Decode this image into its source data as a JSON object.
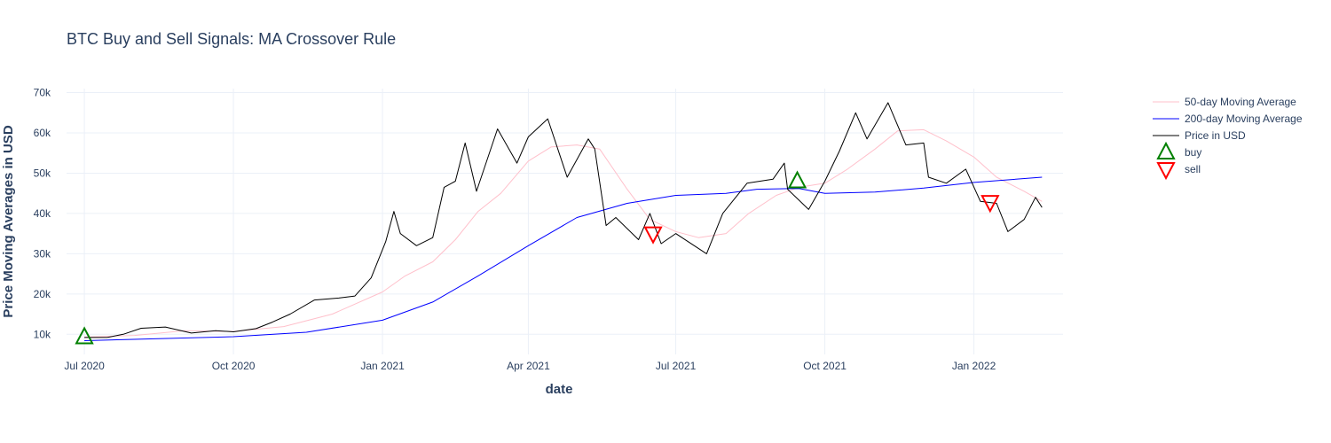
{
  "chart_data": {
    "type": "line",
    "title": "BTC Buy and Sell Signals: MA Crossover Rule",
    "xlabel": "date",
    "ylabel": "Price Moving Averages in USD",
    "xlim": [
      "2020-06-20",
      "2022-02-25"
    ],
    "ylim": [
      5000,
      71000
    ],
    "x_ticks": [
      {
        "date": "2020-07-01",
        "label": "Jul 2020"
      },
      {
        "date": "2020-10-01",
        "label": "Oct 2020"
      },
      {
        "date": "2021-01-01",
        "label": "Jan 2021"
      },
      {
        "date": "2021-04-01",
        "label": "Apr 2021"
      },
      {
        "date": "2021-07-01",
        "label": "Jul 2021"
      },
      {
        "date": "2021-10-01",
        "label": "Oct 2021"
      },
      {
        "date": "2022-01-01",
        "label": "Jan 2022"
      }
    ],
    "y_ticks": [
      {
        "value": 10000,
        "label": "10k"
      },
      {
        "value": 20000,
        "label": "20k"
      },
      {
        "value": 30000,
        "label": "30k"
      },
      {
        "value": 40000,
        "label": "40k"
      },
      {
        "value": 50000,
        "label": "50k"
      },
      {
        "value": 60000,
        "label": "60k"
      },
      {
        "value": 70000,
        "label": "70k"
      }
    ],
    "grid": true,
    "legend_position": "top-right outside",
    "series": [
      {
        "name": "50-day Moving Average",
        "color": "#ffc0cb",
        "points": [
          [
            "2020-07-01",
            9300
          ],
          [
            "2020-08-01",
            9700
          ],
          [
            "2020-09-01",
            10900
          ],
          [
            "2020-10-01",
            10700
          ],
          [
            "2020-11-01",
            11900
          ],
          [
            "2020-12-01",
            15000
          ],
          [
            "2021-01-01",
            20500
          ],
          [
            "2021-01-15",
            24500
          ],
          [
            "2021-02-01",
            28000
          ],
          [
            "2021-02-15",
            33500
          ],
          [
            "2021-03-01",
            40500
          ],
          [
            "2021-03-15",
            45000
          ],
          [
            "2021-04-01",
            53000
          ],
          [
            "2021-04-15",
            56500
          ],
          [
            "2021-05-01",
            57000
          ],
          [
            "2021-05-15",
            56000
          ],
          [
            "2021-06-01",
            46000
          ],
          [
            "2021-06-15",
            38500
          ],
          [
            "2021-07-01",
            35500
          ],
          [
            "2021-07-15",
            34000
          ],
          [
            "2021-08-01",
            35000
          ],
          [
            "2021-08-15",
            40000
          ],
          [
            "2021-09-01",
            44500
          ],
          [
            "2021-09-15",
            46500
          ],
          [
            "2021-10-01",
            47500
          ],
          [
            "2021-10-15",
            51000
          ],
          [
            "2021-11-01",
            56000
          ],
          [
            "2021-11-15",
            60500
          ],
          [
            "2021-12-01",
            60800
          ],
          [
            "2021-12-15",
            58000
          ],
          [
            "2022-01-01",
            54000
          ],
          [
            "2022-01-15",
            49000
          ],
          [
            "2022-02-01",
            45500
          ],
          [
            "2022-02-12",
            43000
          ]
        ]
      },
      {
        "name": "200-day Moving Average",
        "color": "#0000ff",
        "points": [
          [
            "2020-07-01",
            8400
          ],
          [
            "2020-10-01",
            9400
          ],
          [
            "2020-11-15",
            10500
          ],
          [
            "2021-01-01",
            13500
          ],
          [
            "2021-02-01",
            18000
          ],
          [
            "2021-03-01",
            24500
          ],
          [
            "2021-04-01",
            32000
          ],
          [
            "2021-05-01",
            39000
          ],
          [
            "2021-06-01",
            42500
          ],
          [
            "2021-07-01",
            44500
          ],
          [
            "2021-08-01",
            45000
          ],
          [
            "2021-08-20",
            46000
          ],
          [
            "2021-09-15",
            46200
          ],
          [
            "2021-10-01",
            45000
          ],
          [
            "2021-11-01",
            45300
          ],
          [
            "2021-12-01",
            46300
          ],
          [
            "2022-01-01",
            47700
          ],
          [
            "2022-02-12",
            49000
          ]
        ]
      },
      {
        "name": "Price in USD",
        "color": "#000000",
        "points": [
          [
            "2020-07-01",
            9200
          ],
          [
            "2020-07-15",
            9200
          ],
          [
            "2020-07-25",
            10000
          ],
          [
            "2020-08-05",
            11500
          ],
          [
            "2020-08-20",
            11800
          ],
          [
            "2020-09-05",
            10300
          ],
          [
            "2020-09-20",
            10900
          ],
          [
            "2020-10-01",
            10600
          ],
          [
            "2020-10-15",
            11400
          ],
          [
            "2020-10-25",
            13000
          ],
          [
            "2020-11-05",
            15000
          ],
          [
            "2020-11-20",
            18500
          ],
          [
            "2020-12-05",
            19000
          ],
          [
            "2020-12-15",
            19500
          ],
          [
            "2020-12-25",
            24000
          ],
          [
            "2021-01-03",
            33000
          ],
          [
            "2021-01-08",
            40500
          ],
          [
            "2021-01-12",
            35000
          ],
          [
            "2021-01-22",
            32000
          ],
          [
            "2021-02-01",
            34000
          ],
          [
            "2021-02-08",
            46500
          ],
          [
            "2021-02-15",
            48000
          ],
          [
            "2021-02-21",
            57500
          ],
          [
            "2021-02-28",
            45500
          ],
          [
            "2021-03-13",
            61000
          ],
          [
            "2021-03-25",
            52500
          ],
          [
            "2021-04-01",
            59000
          ],
          [
            "2021-04-13",
            63500
          ],
          [
            "2021-04-25",
            49000
          ],
          [
            "2021-05-08",
            58500
          ],
          [
            "2021-05-12",
            56000
          ],
          [
            "2021-05-19",
            37000
          ],
          [
            "2021-05-25",
            39000
          ],
          [
            "2021-06-08",
            33500
          ],
          [
            "2021-06-15",
            40000
          ],
          [
            "2021-06-22",
            32500
          ],
          [
            "2021-07-01",
            35000
          ],
          [
            "2021-07-20",
            30000
          ],
          [
            "2021-07-30",
            40000
          ],
          [
            "2021-08-14",
            47500
          ],
          [
            "2021-08-30",
            48500
          ],
          [
            "2021-09-06",
            52500
          ],
          [
            "2021-09-08",
            46000
          ],
          [
            "2021-09-21",
            41000
          ],
          [
            "2021-10-01",
            48000
          ],
          [
            "2021-10-10",
            55500
          ],
          [
            "2021-10-20",
            65000
          ],
          [
            "2021-10-27",
            58500
          ],
          [
            "2021-11-09",
            67500
          ],
          [
            "2021-11-20",
            57000
          ],
          [
            "2021-12-01",
            57500
          ],
          [
            "2021-12-04",
            49000
          ],
          [
            "2021-12-15",
            47500
          ],
          [
            "2021-12-27",
            51000
          ],
          [
            "2022-01-05",
            43000
          ],
          [
            "2022-01-15",
            42500
          ],
          [
            "2022-01-22",
            35500
          ],
          [
            "2022-02-01",
            38500
          ],
          [
            "2022-02-08",
            44000
          ],
          [
            "2022-02-12",
            41500
          ]
        ]
      },
      {
        "name": "buy",
        "color": "#008000",
        "marker": "triangle-up",
        "points": [
          [
            "2020-07-01",
            9300
          ],
          [
            "2021-09-14",
            48000
          ]
        ]
      },
      {
        "name": "sell",
        "color": "#ff0000",
        "marker": "triangle-down",
        "points": [
          [
            "2021-06-17",
            35000
          ],
          [
            "2022-01-11",
            42800
          ]
        ]
      }
    ]
  }
}
